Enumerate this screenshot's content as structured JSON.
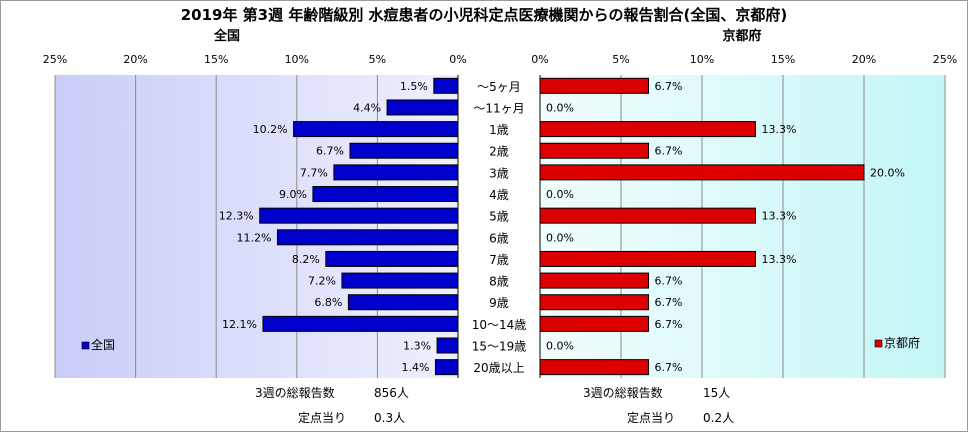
{
  "chart_data": {
    "type": "bar",
    "orientation": "horizontal",
    "title": "2019年 第3週 年齢階級別 水痘患者の小児科定点医療機関からの報告割合(全国、京都府)",
    "categories": [
      "～5ヶ月",
      "～11ヶ月",
      "1歳",
      "2歳",
      "3歳",
      "4歳",
      "5歳",
      "6歳",
      "7歳",
      "8歳",
      "9歳",
      "10～14歳",
      "15～19歳",
      "20歳以上"
    ],
    "axis_ticks": [
      "25%",
      "20%",
      "15%",
      "10%",
      "5%",
      "0%"
    ],
    "right_axis_ticks": [
      "0%",
      "5%",
      "10%",
      "15%",
      "20%",
      "25%"
    ],
    "xlim": [
      0,
      25
    ],
    "grid": true,
    "series": [
      {
        "name": "全国",
        "panel_title": "全国",
        "color": "#0000cc",
        "values": [
          1.5,
          4.4,
          10.2,
          6.7,
          7.7,
          9.0,
          12.3,
          11.2,
          8.2,
          7.2,
          6.8,
          12.1,
          1.3,
          1.4
        ],
        "labels": [
          "1.5%",
          "4.4%",
          "10.2%",
          "6.7%",
          "7.7%",
          "9.0%",
          "12.3%",
          "11.2%",
          "8.2%",
          "7.2%",
          "6.8%",
          "12.1%",
          "1.3%",
          "1.4%"
        ],
        "legend": "left-bottom",
        "total_label": "3週の総報告数",
        "total_value": "856人",
        "per_label": "定点当り",
        "per_value": "0.3人"
      },
      {
        "name": "京都府",
        "panel_title": "京都府",
        "color": "#dd0000",
        "values": [
          6.7,
          0.0,
          13.3,
          6.7,
          20.0,
          0.0,
          13.3,
          0.0,
          13.3,
          6.7,
          6.7,
          6.7,
          0.0,
          6.7
        ],
        "labels": [
          "6.7%",
          "0.0%",
          "13.3%",
          "6.7%",
          "20.0%",
          "0.0%",
          "13.3%",
          "0.0%",
          "13.3%",
          "6.7%",
          "6.7%",
          "6.7%",
          "0.0%",
          "6.7%"
        ],
        "legend": "right-bottom",
        "total_label": "3週の総報告数",
        "total_value": "15人",
        "per_label": "定点当り",
        "per_value": "0.2人"
      }
    ]
  }
}
